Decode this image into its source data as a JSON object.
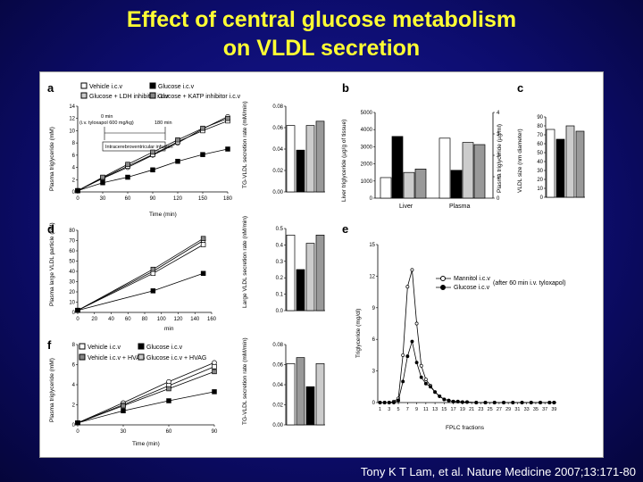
{
  "title": {
    "line1": "Effect of central glucose metabolism",
    "line2": "on VLDL secretion"
  },
  "citation": "Tony K T Lam, et al. Nature Medicine 2007;13:171-80",
  "colors": {
    "title": "#ffff33",
    "background": "#0d0d70"
  },
  "panels": {
    "a": {
      "label": "a",
      "ylabel": "Plasma triglyceride (mM)",
      "xlabel": "Time (min)",
      "legend": [
        "Vehicle i.c.v",
        "Glucose i.c.v",
        "Glucose + LDH inhibitor i.c.v",
        "Glucose + KATP inhibitor i.c.v"
      ],
      "annotation": {
        "t0": "0 min",
        "tylox": "(i.v. tyloxapol 600 mg/kg)",
        "t180": "180 min",
        "infusion": "Intracerebroventricular infusion"
      },
      "bar_ylabel": "TG-VLDL secretion rate (mM/min)"
    },
    "b": {
      "label": "b",
      "ylabel_left": "Liver triglyceride (µg/g of tissue)",
      "ylabel_right": "Plasma triglyceride (µg/ml)",
      "groups": [
        "Liver",
        "Plasma"
      ]
    },
    "c": {
      "label": "c",
      "ylabel": "VLDL size (nm diameter)"
    },
    "d": {
      "label": "d",
      "ylabel": "Plasma large VLDL particle (nM)",
      "xlabel": "min",
      "bar_ylabel": "Large VLDL secretion rate (nM/min)"
    },
    "e": {
      "label": "e",
      "ylabel": "Triglyceride (mg/dl)",
      "xlabel": "FPLC fractions",
      "legend": [
        "Mannitol i.c.v",
        "Glucose i.c.v"
      ],
      "note": "(after 60 min i.v. tyloxapol)"
    },
    "f": {
      "label": "f",
      "ylabel": "Plasma triglyceride (mM)",
      "xlabel": "Time (min)",
      "legend": [
        "Vehicle i.c.v",
        "Glucose i.c.v",
        "Vehicle i.c.v + HVAG",
        "Glucose i.c.v + HVAG"
      ],
      "bar_ylabel": "TG-VLDL secretion rate (mM/min)"
    }
  },
  "chart_data": [
    {
      "id": "a-line",
      "type": "line",
      "x": [
        0,
        30,
        60,
        90,
        120,
        150,
        180
      ],
      "xlim": [
        0,
        180
      ],
      "ylim": [
        0,
        14
      ],
      "xticks": [
        0,
        30,
        60,
        90,
        120,
        150,
        180
      ],
      "yticks": [
        0,
        2,
        4,
        6,
        8,
        10,
        12,
        14
      ],
      "series": [
        {
          "name": "Vehicle i.c.v",
          "marker": "open-circle",
          "values": [
            0.2,
            2.2,
            4.0,
            6.0,
            8.0,
            10.3,
            12.3
          ]
        },
        {
          "name": "Glucose + LDH inhibitor i.c.v",
          "marker": "open-square",
          "values": [
            0.2,
            2.3,
            4.2,
            6.1,
            8.2,
            10.0,
            11.6
          ]
        },
        {
          "name": "Glucose + KATP inhibitor i.c.v",
          "marker": "gray-square",
          "values": [
            0.2,
            2.4,
            4.5,
            6.5,
            8.5,
            10.4,
            12.0
          ]
        },
        {
          "name": "Glucose i.c.v",
          "marker": "filled-square",
          "values": [
            0.2,
            1.5,
            2.4,
            3.6,
            5.0,
            6.1,
            7.0
          ]
        }
      ]
    },
    {
      "id": "a-bar",
      "type": "bar",
      "ylim": [
        0,
        0.08
      ],
      "yticks": [
        0,
        0.02,
        0.04,
        0.06,
        0.08
      ],
      "values": [
        0.062,
        0.039,
        0.062,
        0.066
      ],
      "fills": [
        "#ffffff",
        "#000000",
        "#cccccc",
        "#999999"
      ]
    },
    {
      "id": "b-bar",
      "type": "bar",
      "ylim_left": [
        0,
        5000
      ],
      "yticks_left": [
        0,
        1000,
        2000,
        3000,
        4000,
        5000
      ],
      "ylim_right": [
        0,
        4
      ],
      "yticks_right": [
        0,
        1,
        2,
        3,
        4
      ],
      "groups": [
        {
          "name": "Liver",
          "values": [
            1200,
            3600,
            1500,
            1700
          ]
        },
        {
          "name": "Plasma",
          "values": [
            2.8,
            1.3,
            2.6,
            2.5
          ]
        }
      ],
      "fills": [
        "#ffffff",
        "#000000",
        "#cccccc",
        "#999999"
      ]
    },
    {
      "id": "c-bar",
      "type": "bar",
      "ylim": [
        0,
        90
      ],
      "yticks": [
        0,
        10,
        20,
        30,
        40,
        50,
        60,
        70,
        80,
        90
      ],
      "values": [
        76,
        65,
        80,
        74
      ],
      "fills": [
        "#ffffff",
        "#000000",
        "#cccccc",
        "#999999"
      ]
    },
    {
      "id": "d-line",
      "type": "line",
      "x": [
        0,
        90,
        150
      ],
      "xlim": [
        0,
        160
      ],
      "ylim": [
        0,
        80
      ],
      "xticks": [
        0,
        20,
        40,
        60,
        80,
        100,
        120,
        140,
        160
      ],
      "yticks": [
        0,
        10,
        20,
        30,
        40,
        50,
        60,
        70,
        80
      ],
      "series": [
        {
          "name": "Vehicle i.c.v",
          "marker": "open-circle",
          "values": [
            2,
            40,
            70
          ]
        },
        {
          "name": "Glucose + LDH inhibitor i.c.v",
          "marker": "open-square",
          "values": [
            2,
            38,
            66
          ]
        },
        {
          "name": "Glucose + KATP inhibitor i.c.v",
          "marker": "gray-square",
          "values": [
            2,
            42,
            72
          ]
        },
        {
          "name": "Glucose i.c.v",
          "marker": "filled-square",
          "values": [
            2,
            21,
            38
          ]
        }
      ]
    },
    {
      "id": "d-bar",
      "type": "bar",
      "ylim": [
        0,
        0.5
      ],
      "yticks": [
        0,
        0.1,
        0.2,
        0.3,
        0.4,
        0.5
      ],
      "values": [
        0.46,
        0.25,
        0.41,
        0.46
      ],
      "fills": [
        "#ffffff",
        "#000000",
        "#cccccc",
        "#999999"
      ]
    },
    {
      "id": "e-line",
      "type": "line",
      "xticks": [
        "1",
        "3",
        "5",
        "7",
        "9",
        "11",
        "13",
        "15",
        "17",
        "19",
        "21",
        "23",
        "25",
        "27",
        "29",
        "31",
        "33",
        "35",
        "37",
        "39"
      ],
      "ylim": [
        0,
        15
      ],
      "yticks": [
        0,
        3,
        6,
        9,
        12,
        15
      ],
      "series": [
        {
          "name": "Mannitol i.c.v",
          "marker": "open-circle",
          "fraction": [
            1,
            2,
            3,
            4,
            5,
            6,
            7,
            8,
            9,
            10,
            11,
            12,
            13,
            14,
            15,
            16,
            17,
            18,
            19,
            20,
            22,
            24,
            26,
            28,
            30,
            32,
            34,
            36,
            38,
            39
          ],
          "values": [
            0,
            0,
            0,
            0.1,
            0.4,
            4.5,
            11.0,
            12.6,
            7.5,
            3.5,
            2.2,
            1.6,
            1.0,
            0.6,
            0.3,
            0.2,
            0.1,
            0.1,
            0.05,
            0.05,
            0,
            0,
            0,
            0,
            0,
            0,
            0,
            0,
            0,
            0
          ]
        },
        {
          "name": "Glucose i.c.v",
          "marker": "filled-circle",
          "fraction": [
            1,
            2,
            3,
            4,
            5,
            6,
            7,
            8,
            9,
            10,
            11,
            12,
            13,
            14,
            15,
            16,
            17,
            18,
            19,
            20,
            22,
            24,
            26,
            28,
            30,
            32,
            34,
            36,
            38,
            39
          ],
          "values": [
            0,
            0,
            0,
            0,
            0.2,
            2.0,
            4.4,
            5.8,
            3.8,
            2.4,
            1.8,
            1.5,
            1.0,
            0.6,
            0.3,
            0.2,
            0.1,
            0.1,
            0.05,
            0.05,
            0,
            0,
            0,
            0,
            0,
            0,
            0,
            0,
            0,
            0
          ]
        }
      ]
    },
    {
      "id": "f-line",
      "type": "line",
      "x": [
        0,
        30,
        60,
        90
      ],
      "xlim": [
        0,
        90
      ],
      "ylim": [
        0,
        8
      ],
      "xticks": [
        0,
        30,
        60,
        90
      ],
      "yticks": [
        0,
        2,
        4,
        6,
        8
      ],
      "series": [
        {
          "name": "Vehicle i.c.v",
          "marker": "open-circle",
          "values": [
            0.2,
            2.2,
            4.3,
            6.2
          ]
        },
        {
          "name": "Vehicle i.c.v + HVAG",
          "marker": "open-square",
          "values": [
            0.2,
            2.0,
            3.9,
            5.8
          ]
        },
        {
          "name": "Glucose i.c.v + HVAG",
          "marker": "gray-square",
          "values": [
            0.2,
            1.9,
            3.6,
            5.3
          ]
        },
        {
          "name": "Glucose i.c.v",
          "marker": "filled-square",
          "values": [
            0.2,
            1.4,
            2.4,
            3.3
          ]
        }
      ]
    },
    {
      "id": "f-bar",
      "type": "bar",
      "ylim": [
        0,
        0.08
      ],
      "yticks": [
        0,
        0.02,
        0.04,
        0.06,
        0.08
      ],
      "values": [
        0.061,
        0.067,
        0.038,
        0.061
      ],
      "fills": [
        "#ffffff",
        "#999999",
        "#000000",
        "#cccccc"
      ]
    }
  ]
}
